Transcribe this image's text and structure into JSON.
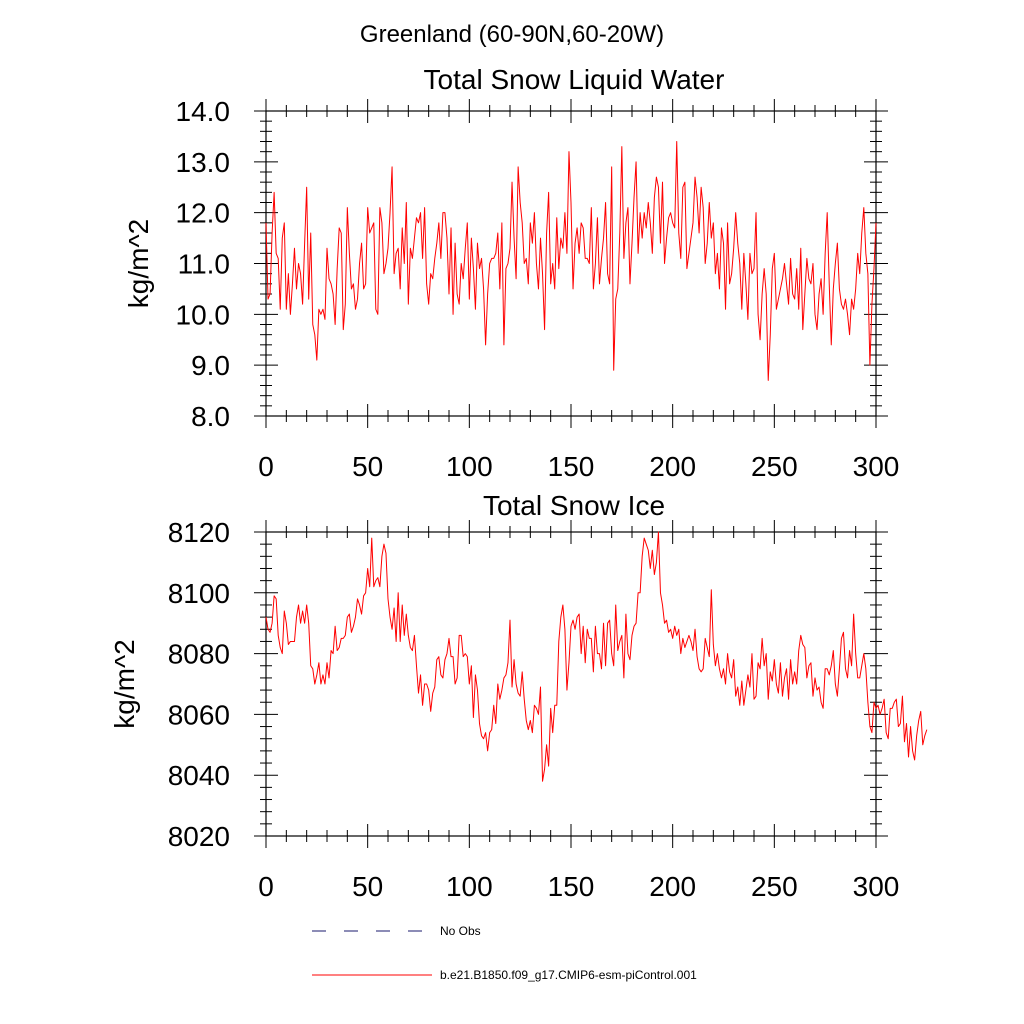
{
  "figure": {
    "suptitle": "Greenland (60-90N,60-20W)",
    "legend": [
      {
        "label": "No Obs",
        "style": "dashed",
        "color": "#1a1a6e"
      },
      {
        "label": "b.e21.B1850.f09_g17.CMIP6-esm-piControl.001",
        "style": "solid",
        "color": "#ff0000"
      }
    ]
  },
  "chart_data": [
    {
      "type": "line",
      "title": "Total Snow Liquid Water",
      "xlabel": "",
      "ylabel": "kg/m^2",
      "xlim": [
        0,
        300
      ],
      "ylim": [
        8.0,
        14.0
      ],
      "xticks": [
        0,
        50,
        100,
        150,
        200,
        250,
        300
      ],
      "yticks": [
        8.0,
        9.0,
        10.0,
        11.0,
        12.0,
        13.0,
        14.0
      ],
      "ytick_labels": [
        "8.0",
        "9.0",
        "10.0",
        "11.0",
        "12.0",
        "13.0",
        "14.0"
      ],
      "series": [
        {
          "name": "b.e21.B1850.f09_g17.CMIP6-esm-piControl.001",
          "color": "#ff0000",
          "x_start": 0,
          "x_step": 1,
          "values": [
            11.8,
            10.3,
            10.4,
            11.6,
            12.4,
            11.2,
            11.1,
            10.1,
            11.5,
            11.8,
            10.1,
            10.8,
            10.0,
            10.6,
            11.3,
            10.5,
            11.0,
            10.8,
            10.2,
            11.4,
            12.5,
            10.3,
            11.6,
            9.8,
            9.6,
            9.1,
            10.1,
            10.0,
            10.1,
            9.9,
            11.3,
            10.7,
            10.6,
            10.4,
            9.8,
            10.9,
            11.7,
            11.6,
            9.7,
            10.2,
            12.1,
            11.2,
            10.5,
            10.6,
            10.1,
            10.3,
            11.0,
            11.4,
            10.5,
            10.6,
            12.1,
            11.6,
            11.7,
            11.8,
            10.1,
            10.0,
            12.1,
            11.8,
            10.8,
            11.0,
            11.3,
            12.0,
            12.9,
            10.8,
            11.2,
            11.3,
            10.5,
            11.7,
            11.0,
            12.2,
            10.2,
            11.3,
            11.1,
            11.5,
            11.9,
            11.8,
            12.0,
            11.1,
            12.1,
            10.6,
            10.2,
            10.8,
            10.7,
            11.1,
            11.4,
            11.8,
            11.1,
            12.0,
            12.0,
            11.5,
            10.4,
            11.7,
            10.0,
            11.4,
            10.4,
            10.2,
            11.0,
            10.7,
            11.3,
            11.8,
            10.3,
            11.5,
            10.9,
            10.1,
            11.4,
            10.9,
            11.1,
            10.5,
            9.4,
            10.4,
            11.0,
            11.1,
            11.1,
            11.2,
            11.6,
            10.5,
            11.8,
            9.4,
            10.9,
            11.0,
            11.3,
            12.6,
            11.5,
            10.7,
            12.9,
            12.2,
            11.8,
            11.0,
            11.1,
            10.6,
            11.8,
            11.4,
            12.0,
            11.0,
            10.5,
            11.5,
            10.8,
            9.7,
            11.6,
            12.4,
            10.6,
            11.0,
            10.5,
            11.9,
            10.9,
            11.5,
            11.3,
            12.0,
            11.2,
            13.2,
            12.2,
            10.5,
            11.4,
            11.7,
            11.2,
            11.8,
            11.7,
            11.1,
            11.1,
            11.0,
            12.1,
            10.5,
            11.0,
            11.9,
            10.6,
            11.1,
            11.5,
            12.2,
            10.8,
            10.6,
            12.9,
            8.9,
            10.3,
            10.5,
            11.6,
            13.3,
            11.1,
            11.8,
            12.1,
            10.6,
            11.4,
            12.3,
            13.0,
            11.2,
            12.0,
            11.5,
            12.0,
            11.7,
            12.2,
            11.8,
            11.2,
            12.3,
            12.7,
            12.5,
            11.4,
            12.6,
            11.0,
            11.5,
            11.9,
            12.0,
            11.8,
            11.7,
            13.4,
            11.6,
            11.1,
            12.5,
            12.6,
            10.9,
            11.2,
            11.5,
            11.8,
            12.7,
            12.3,
            11.6,
            12.5,
            12.1,
            11.0,
            11.4,
            12.2,
            11.5,
            11.8,
            10.8,
            11.2,
            10.5,
            11.7,
            11.4,
            10.1,
            11.8,
            10.6,
            10.8,
            11.3,
            12.0,
            11.4,
            11.0,
            10.1,
            11.2,
            10.6,
            9.9,
            11.2,
            10.8,
            10.9,
            12.0,
            10.0,
            9.5,
            10.4,
            10.9,
            10.4,
            8.7,
            9.6,
            10.9,
            11.2,
            10.1,
            10.3,
            10.5,
            10.7,
            11.0,
            10.6,
            10.2,
            11.1,
            10.4,
            10.3,
            10.9,
            10.1,
            11.3,
            9.7,
            10.4,
            11.1,
            10.7,
            10.6,
            11.0,
            10.0,
            9.7,
            10.4,
            10.7,
            10.0,
            11.2,
            12.0,
            10.6,
            9.4,
            10.5,
            11.0,
            11.4,
            10.5,
            10.2,
            10.1,
            10.3,
            10.0,
            9.6,
            10.3,
            10.1,
            10.5,
            11.2,
            10.8,
            11.6,
            12.1,
            11.2,
            10.8,
            9.0,
            10.2,
            10.9,
            11.8
          ]
        }
      ]
    },
    {
      "type": "line",
      "title": "Total Snow Ice",
      "xlabel": "",
      "ylabel": "kg/m^2",
      "xlim": [
        0,
        300
      ],
      "ylim": [
        8020,
        8120
      ],
      "xticks": [
        0,
        50,
        100,
        150,
        200,
        250,
        300
      ],
      "yticks": [
        8020,
        8040,
        8060,
        8080,
        8100,
        8120
      ],
      "ytick_labels": [
        "8020",
        "8040",
        "8060",
        "8080",
        "8100",
        "8120"
      ],
      "series": [
        {
          "name": "b.e21.B1850.f09_g17.CMIP6-esm-piControl.001",
          "color": "#ff0000",
          "x_start": 0,
          "x_step": 1,
          "values": [
            8092,
            8088,
            8087,
            8090,
            8099,
            8098,
            8086,
            8082,
            8080,
            8094,
            8090,
            8083,
            8084,
            8084,
            8084,
            8092,
            8096,
            8090,
            8094,
            8090,
            8096,
            8090,
            8076,
            8075,
            8070,
            8073,
            8077,
            8070,
            8073,
            8070,
            8077,
            8072,
            8081,
            8080,
            8089,
            8081,
            8082,
            8085,
            8085,
            8086,
            8092,
            8093,
            8087,
            8089,
            8092,
            8098,
            8096,
            8093,
            8099,
            8100,
            8108,
            8102,
            8118,
            8102,
            8104,
            8105,
            8102,
            8112,
            8116,
            8113,
            8098,
            8092,
            8088,
            8095,
            8084,
            8100,
            8084,
            8096,
            8086,
            8093,
            8086,
            8082,
            8081,
            8086,
            8076,
            8067,
            8073,
            8063,
            8070,
            8070,
            8068,
            8061,
            8067,
            8069,
            8078,
            8079,
            8073,
            8072,
            8078,
            8080,
            8085,
            8079,
            8079,
            8070,
            8072,
            8086,
            8086,
            8079,
            8080,
            8079,
            8070,
            8076,
            8059,
            8073,
            8068,
            8057,
            8053,
            8052,
            8054,
            8048,
            8054,
            8055,
            8063,
            8057,
            8070,
            8065,
            8068,
            8072,
            8073,
            8077,
            8091,
            8069,
            8078,
            8070,
            8067,
            8066,
            8074,
            8065,
            8058,
            8055,
            8058,
            8054,
            8063,
            8062,
            8060,
            8069,
            8038,
            8042,
            8050,
            8043,
            8062,
            8054,
            8063,
            8063,
            8084,
            8092,
            8096,
            8088,
            8068,
            8077,
            8089,
            8091,
            8088,
            8092,
            8093,
            8080,
            8089,
            8077,
            8088,
            8085,
            8085,
            8074,
            8089,
            8080,
            8080,
            8075,
            8090,
            8076,
            8090,
            8091,
            8080,
            8076,
            8096,
            8081,
            8084,
            8086,
            8072,
            8093,
            8080,
            8078,
            8086,
            8089,
            8090,
            8100,
            8100,
            8112,
            8118,
            8116,
            8114,
            8108,
            8114,
            8106,
            8110,
            8120,
            8100,
            8096,
            8090,
            8091,
            8087,
            8088,
            8085,
            8089,
            8086,
            8088,
            8080,
            8085,
            8082,
            8084,
            8086,
            8084,
            8081,
            8088,
            8079,
            8075,
            8074,
            8075,
            8085,
            8082,
            8079,
            8101,
            8083,
            8076,
            8080,
            8075,
            8072,
            8075,
            8070,
            8080,
            8074,
            8072,
            8078,
            8066,
            8069,
            8063,
            8071,
            8063,
            8068,
            8073,
            8069,
            8080,
            8065,
            8066,
            8077,
            8075,
            8085,
            8076,
            8080,
            8065,
            8074,
            8071,
            8078,
            8070,
            8067,
            8077,
            8066,
            8072,
            8075,
            8065,
            8078,
            8070,
            8074,
            8070,
            8081,
            8086,
            8083,
            8082,
            8072,
            8076,
            8077,
            8066,
            8072,
            8068,
            8069,
            8064,
            8062,
            8075,
            8075,
            8073,
            8076,
            8081,
            8070,
            8066,
            8075,
            8085,
            8087,
            8075,
            8072,
            8081,
            8076,
            8093,
            8080,
            8072,
            8072,
            8076,
            8080,
            8075,
            8064,
            8056,
            8054,
            8064,
            8062,
            8063,
            8060,
            8062,
            8065,
            8054,
            8052,
            8062,
            8062,
            8064,
            8065,
            8056,
            8057,
            8066,
            8051,
            8057,
            8046,
            8056,
            8048,
            8045,
            8053,
            8058,
            8061,
            8050,
            8053,
            8055
          ]
        }
      ]
    }
  ]
}
